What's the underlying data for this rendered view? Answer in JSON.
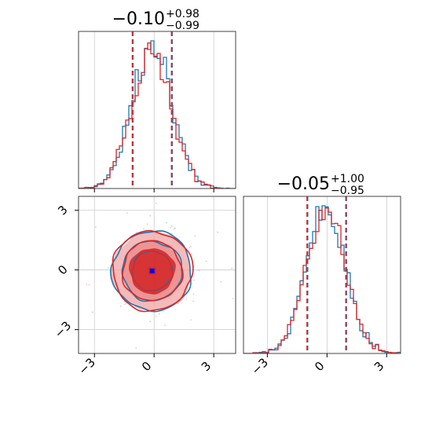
{
  "chart_data": {
    "type": "corner",
    "parameters": [
      {
        "title": {
          "median": "−0.10",
          "plus": "+0.98",
          "minus": "−0.99"
        },
        "median": -0.1,
        "quantile_lines": [
          -1.09,
          0.88
        ],
        "xlim": [
          -3.8,
          4.1
        ]
      },
      {
        "title": {
          "median": "−0.05",
          "plus": "+1.00",
          "minus": "−0.95"
        },
        "median": -0.05,
        "quantile_lines": [
          -1.0,
          0.95
        ],
        "xlim": [
          -4.2,
          3.7
        ]
      }
    ],
    "ticks": {
      "values": [
        -3,
        0,
        3
      ],
      "labels": [
        "−3",
        "0",
        "3"
      ]
    },
    "joint": {
      "xlim": [
        -3.8,
        4.1
      ],
      "ylim": [
        -4.2,
        3.7
      ],
      "contour_levels": [
        0.5,
        1.0,
        1.5,
        2.0
      ]
    },
    "series": [
      {
        "name": "",
        "color": "#1f77b4"
      },
      {
        "name": "",
        "color": "#d62728"
      }
    ],
    "grid": true,
    "colors": {
      "blue": "#1f77b4",
      "red": "#d62728",
      "fill_light": "#f2a3a3",
      "fill_dark": "#d42a2a",
      "center_marker": "#0000ff"
    }
  }
}
